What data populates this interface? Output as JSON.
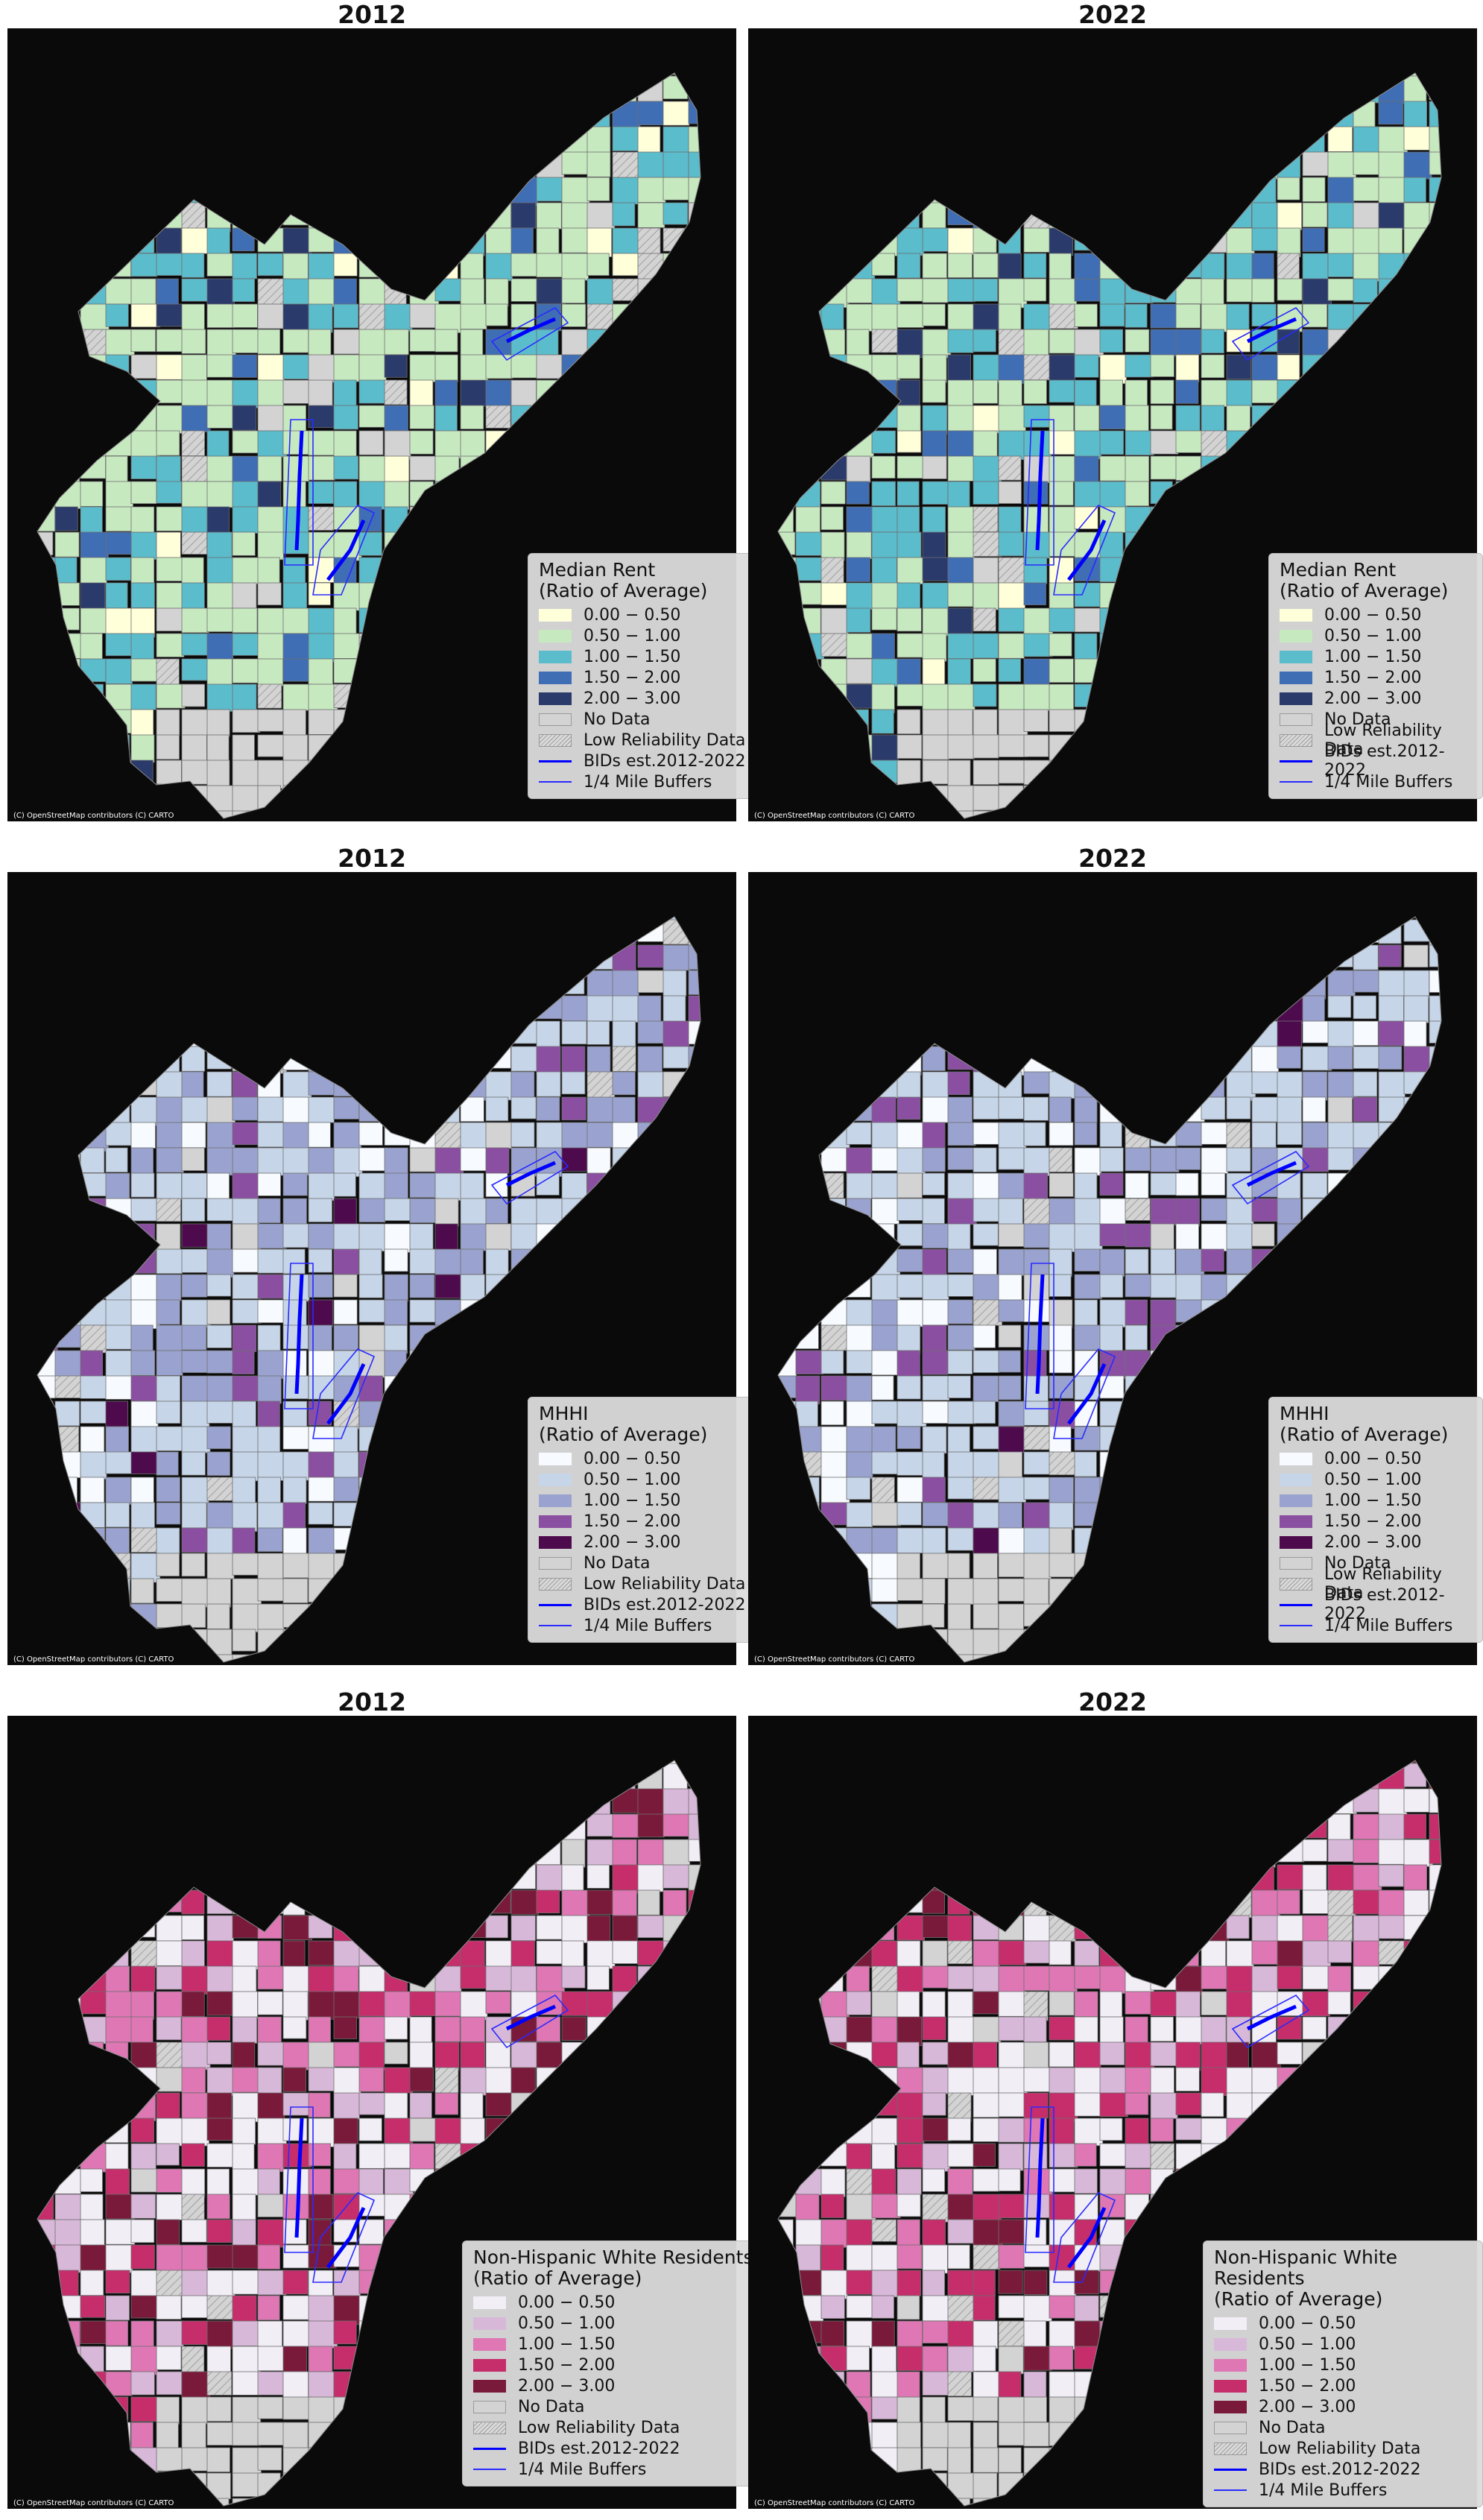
{
  "attribution": "(C) OpenStreetMap contributors (C) CARTO",
  "colors": {
    "nodata": "#d3d3d3",
    "bid": "#0000ff",
    "background": "#0a0a0a",
    "rent": [
      "#ffffd9",
      "#c7e9c0",
      "#5bbccc",
      "#3f6eb5",
      "#2a3a6a"
    ],
    "mhhi": [
      "#f7fbff",
      "#c6d5e8",
      "#9aa3cf",
      "#8b4fa2",
      "#4d0b4d"
    ],
    "white": [
      "#f1eef6",
      "#d8b8d8",
      "#de77b4",
      "#c62d6b",
      "#7a1a3a"
    ]
  },
  "panels": [
    {
      "title": "2012",
      "legend": {
        "title_line1": "Median Rent",
        "title_line2": "(Ratio of Average)",
        "classes": [
          "0.00 − 0.50",
          "0.50 − 1.00",
          "1.00 − 1.50",
          "1.50 − 2.00",
          "2.00 − 3.00"
        ],
        "no_data": "No Data",
        "low_reliability": "Low Reliability Data",
        "bids": "BIDs est.2012-2022",
        "buffers": "1/4 Mile Buffers"
      }
    },
    {
      "title": "2022",
      "legend": {
        "title_line1": "Median Rent",
        "title_line2": "(Ratio of Average)",
        "classes": [
          "0.00 − 0.50",
          "0.50 − 1.00",
          "1.00 − 1.50",
          "1.50 − 2.00",
          "2.00 − 3.00"
        ],
        "no_data": "No Data",
        "low_reliability": "Low Reliability Data",
        "bids": "BIDs est.2012-2022",
        "buffers": "1/4 Mile Buffers"
      }
    },
    {
      "title": "2012",
      "legend": {
        "title_line1": "MHHI",
        "title_line2": "(Ratio of Average)",
        "classes": [
          "0.00 − 0.50",
          "0.50 − 1.00",
          "1.00 − 1.50",
          "1.50 − 2.00",
          "2.00 − 3.00"
        ],
        "no_data": "No Data",
        "low_reliability": "Low Reliability Data",
        "bids": "BIDs est.2012-2022",
        "buffers": "1/4 Mile Buffers"
      }
    },
    {
      "title": "2022",
      "legend": {
        "title_line1": "MHHI",
        "title_line2": "(Ratio of Average)",
        "classes": [
          "0.00 − 0.50",
          "0.50 − 1.00",
          "1.00 − 1.50",
          "1.50 − 2.00",
          "2.00 − 3.00"
        ],
        "no_data": "No Data",
        "low_reliability": "Low Reliability Data",
        "bids": "BIDs est.2012-2022",
        "buffers": "1/4 Mile Buffers"
      }
    },
    {
      "title": "2012",
      "legend": {
        "title_line1": "Non-Hispanic White Residents",
        "title_line2": "(Ratio of Average)",
        "classes": [
          "0.00 − 0.50",
          "0.50 − 1.00",
          "1.00 − 1.50",
          "1.50 − 2.00",
          "2.00 − 3.00"
        ],
        "no_data": "No Data",
        "low_reliability": "Low Reliability Data",
        "bids": "BIDs est.2012-2022",
        "buffers": "1/4 Mile Buffers"
      }
    },
    {
      "title": "2022",
      "legend": {
        "title_line1": "Non-Hispanic White Residents",
        "title_line2": "(Ratio of Average)",
        "classes": [
          "0.00 − 0.50",
          "0.50 − 1.00",
          "1.00 − 1.50",
          "1.50 − 2.00",
          "2.00 − 3.00"
        ],
        "no_data": "No Data",
        "low_reliability": "Low Reliability Data",
        "bids": "BIDs est.2012-2022",
        "buffers": "1/4 Mile Buffers"
      }
    }
  ]
}
